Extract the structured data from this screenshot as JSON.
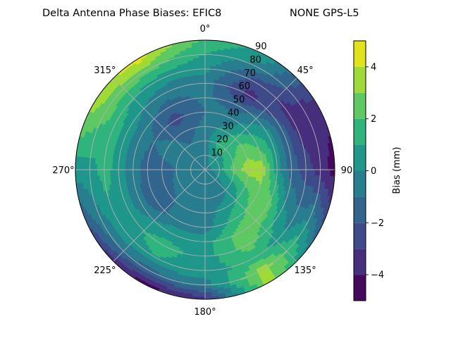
{
  "chart_data": {
    "type": "contour",
    "projection": "polar",
    "title_left": "Delta Antenna Phase Biases: EFIC8",
    "title_right": "NONE GPS-L5",
    "theta_direction": "clockwise",
    "theta_zero": "top",
    "theta_tick_labels": [
      "0°",
      "45°",
      "90",
      "135°",
      "180°",
      "225°",
      "270°",
      "315°"
    ],
    "theta_ticks": [
      0,
      45,
      90,
      135,
      180,
      225,
      270,
      315
    ],
    "radial_ticks": [
      10,
      20,
      30,
      40,
      50,
      60,
      70,
      80,
      90
    ],
    "radial_tick_labels": [
      "10",
      "20",
      "30",
      "40",
      "50",
      "60",
      "70",
      "80",
      "90"
    ],
    "rlim": [
      0,
      90
    ],
    "grid": true,
    "azimuth_grid": [
      0,
      30,
      60,
      90,
      120,
      150,
      180,
      210,
      240,
      270,
      300,
      330
    ],
    "radius_grid": [
      0,
      10,
      20,
      30,
      40,
      50,
      60,
      70,
      80,
      90
    ],
    "values": [
      [
        -0.5,
        -0.5,
        -0.5,
        -0.7,
        -1,
        -0.8,
        -0.5,
        0.3,
        1,
        1.8
      ],
      [
        -0.5,
        0.5,
        1.5,
        0.5,
        -0.5,
        -1.5,
        -3.5,
        -2.5,
        -0.5,
        0.5
      ],
      [
        -0.5,
        0.5,
        1.5,
        2.5,
        1.5,
        0.5,
        -1.5,
        -3.5,
        -3.5,
        -3.5
      ],
      [
        -0.5,
        0.5,
        2.5,
        3.5,
        3.5,
        0.5,
        -1.5,
        -2.5,
        -3.5,
        -4.5
      ],
      [
        -0.5,
        0,
        0.5,
        1.5,
        2.5,
        2.5,
        0.5,
        -0.5,
        0.5,
        -1.5
      ],
      [
        -0.5,
        -0.5,
        -0.5,
        0.5,
        1.5,
        2.5,
        2.5,
        1.5,
        3.5,
        3.5
      ],
      [
        -0.5,
        -0.5,
        -0.5,
        -0.5,
        -0.5,
        0.5,
        0.5,
        0.5,
        -0.5,
        -3.5
      ],
      [
        -0.5,
        -0.5,
        -0.5,
        -0.5,
        -0.5,
        0.5,
        1.5,
        1,
        -1.5,
        -4.5
      ],
      [
        -0.5,
        -0.5,
        -0.5,
        -1.5,
        -2,
        -0.5,
        0.5,
        0.5,
        -0.5,
        -2.5
      ],
      [
        -0.5,
        -0.5,
        -1,
        -1.5,
        -1.5,
        -0.5,
        0.5,
        1.5,
        0.5,
        0.5
      ],
      [
        -0.5,
        -0.5,
        -0.5,
        -0.5,
        -1,
        -0.5,
        0.5,
        1.5,
        2.5,
        3.5
      ],
      [
        -0.5,
        -0.5,
        -1,
        -1.5,
        -2.5,
        -1.5,
        -0.5,
        0.5,
        2.5,
        4.5
      ]
    ],
    "levels": [
      -5,
      -4,
      -3,
      -2,
      -1,
      0,
      1,
      2,
      3,
      4,
      5
    ],
    "colormap": "viridis",
    "level_colors": [
      "#46085c",
      "#472f7d",
      "#3e4a89",
      "#32658e",
      "#287d8e",
      "#1f978b",
      "#2fb47c",
      "#5ec962",
      "#a0da39",
      "#e1e318"
    ],
    "colorbar": {
      "label": "Bias (mm)",
      "ticks": [
        -4,
        -2,
        0,
        2,
        4
      ],
      "tick_labels": [
        "−4",
        "−2",
        "0",
        "2",
        "4"
      ],
      "range": [
        -5,
        5
      ]
    }
  }
}
